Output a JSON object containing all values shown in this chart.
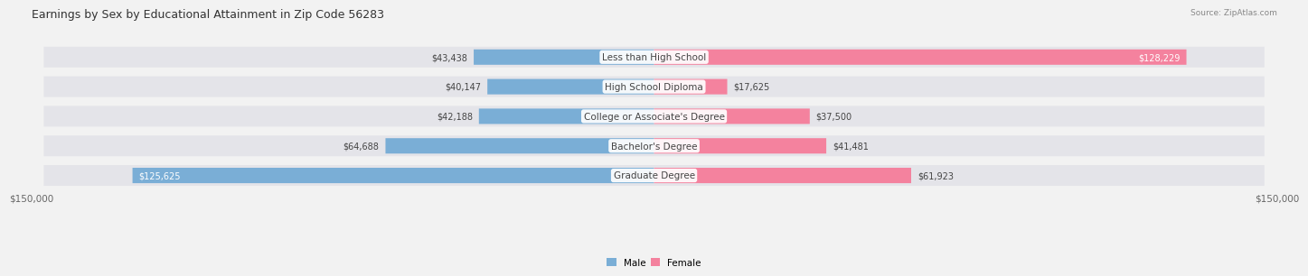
{
  "title": "Earnings by Sex by Educational Attainment in Zip Code 56283",
  "source": "Source: ZipAtlas.com",
  "categories": [
    "Less than High School",
    "High School Diploma",
    "College or Associate's Degree",
    "Bachelor's Degree",
    "Graduate Degree"
  ],
  "male_values": [
    43438,
    40147,
    42188,
    64688,
    125625
  ],
  "female_values": [
    128229,
    17625,
    37500,
    41481,
    61923
  ],
  "male_color": "#7aaed6",
  "female_color": "#f4829e",
  "axis_max": 150000,
  "bg_color": "#f2f2f2",
  "row_bg_color": "#e8e8ec",
  "title_fontsize": 9,
  "source_fontsize": 6.5,
  "axis_label_fontsize": 7.5,
  "bar_label_fontsize": 7,
  "cat_label_fontsize": 7.5,
  "display_order": [
    0,
    1,
    2,
    3,
    4
  ]
}
